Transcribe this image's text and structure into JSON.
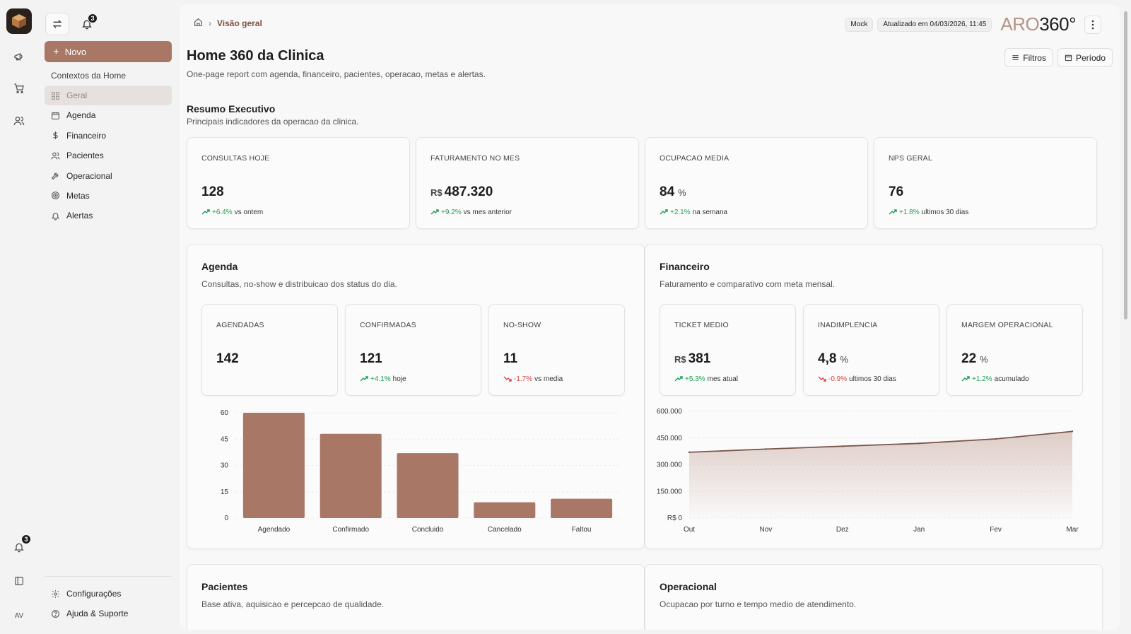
{
  "rail": {
    "notifications_badge": "3",
    "avatar_initials": "AV"
  },
  "sidebar": {
    "notifications_badge": "3",
    "new_label": "Novo",
    "section_label": "Contextos da Home",
    "items": [
      {
        "label": "Geral",
        "icon": "grid-icon"
      },
      {
        "label": "Agenda",
        "icon": "calendar-icon"
      },
      {
        "label": "Financeiro",
        "icon": "dollar-icon"
      },
      {
        "label": "Pacientes",
        "icon": "users-icon"
      },
      {
        "label": "Operacional",
        "icon": "wrench-icon"
      },
      {
        "label": "Metas",
        "icon": "target-icon"
      },
      {
        "label": "Alertas",
        "icon": "bell-icon"
      }
    ],
    "bottom": [
      {
        "label": "Configurações",
        "icon": "gear-icon"
      },
      {
        "label": "Ajuda & Suporte",
        "icon": "help-icon"
      }
    ]
  },
  "header": {
    "breadcrumb_current": "Visão geral",
    "mock_label": "Mock",
    "updated_label": "Atualizado em 04/03/2026, 11:45",
    "brand_aro": "ARO",
    "brand_360": "360°"
  },
  "page": {
    "title": "Home 360 da Clinica",
    "subtitle": "One-page report com agenda, financeiro, pacientes, operacao, metas e alertas.",
    "filters_label": "Filtros",
    "period_label": "Período"
  },
  "summary": {
    "title": "Resumo Executivo",
    "subtitle": "Principais indicadores da operacao da clinica.",
    "kpis": [
      {
        "label": "CONSULTAS HOJE",
        "currency": "",
        "value": "128",
        "unit": "",
        "delta": "+6.4%",
        "context": "vs ontem",
        "direction": "up"
      },
      {
        "label": "FATURAMENTO NO MES",
        "currency": "R$",
        "value": "487.320",
        "unit": "",
        "delta": "+9.2%",
        "context": "vs mes anterior",
        "direction": "up"
      },
      {
        "label": "OCUPACAO MEDIA",
        "currency": "",
        "value": "84",
        "unit": "%",
        "delta": "+2.1%",
        "context": "na semana",
        "direction": "up"
      },
      {
        "label": "NPS GERAL",
        "currency": "",
        "value": "76",
        "unit": "",
        "delta": "+1.8%",
        "context": "ultimos 30 dias",
        "direction": "up"
      }
    ]
  },
  "agenda": {
    "title": "Agenda",
    "subtitle": "Consultas, no-show e distribuicao dos status do dia.",
    "minis": [
      {
        "label": "AGENDADAS",
        "currency": "",
        "value": "142",
        "unit": "",
        "delta": "",
        "context": "",
        "direction": "none"
      },
      {
        "label": "CONFIRMADAS",
        "currency": "",
        "value": "121",
        "unit": "",
        "delta": "+4.1%",
        "context": "hoje",
        "direction": "up"
      },
      {
        "label": "NO-SHOW",
        "currency": "",
        "value": "11",
        "unit": "",
        "delta": "-1.7%",
        "context": "vs media",
        "direction": "down"
      }
    ]
  },
  "financeiro": {
    "title": "Financeiro",
    "subtitle": "Faturamento e comparativo com meta mensal.",
    "minis": [
      {
        "label": "TICKET MEDIO",
        "currency": "R$",
        "value": "381",
        "unit": "",
        "delta": "+5.3%",
        "context": "mes atual",
        "direction": "up"
      },
      {
        "label": "INADIMPLENCIA",
        "currency": "",
        "value": "4,8",
        "unit": "%",
        "delta": "-0.9%",
        "context": "ultimos 30 dias",
        "direction": "down"
      },
      {
        "label": "MARGEM OPERACIONAL",
        "currency": "",
        "value": "22",
        "unit": "%",
        "delta": "+1.2%",
        "context": "acumulado",
        "direction": "up"
      }
    ]
  },
  "pacientes": {
    "title": "Pacientes",
    "subtitle": "Base ativa, aquisicao e percepcao de qualidade."
  },
  "operacional": {
    "title": "Operacional",
    "subtitle": "Ocupacao por turno e tempo medio de atendimento."
  },
  "colors": {
    "accent": "#a87766",
    "up": "#1f9d55",
    "down": "#d64545",
    "line": "#7a5648"
  },
  "chart_data": [
    {
      "type": "bar",
      "categories": [
        "Agendado",
        "Confirmado",
        "Concluido",
        "Cancelado",
        "Faltou"
      ],
      "values": [
        60,
        48,
        37,
        9,
        11
      ],
      "ylim": [
        0,
        60
      ],
      "yticks": [
        "0",
        "15",
        "30",
        "45",
        "60"
      ],
      "tick_values": [
        0,
        15,
        30,
        45,
        60
      ],
      "grid": true,
      "color": "#a87766"
    },
    {
      "type": "area",
      "categories": [
        "Out",
        "Nov",
        "Dez",
        "Jan",
        "Fev",
        "Mar"
      ],
      "values": [
        370000,
        388000,
        404000,
        420000,
        445000,
        487320
      ],
      "ylim": [
        0,
        600000
      ],
      "yticks": [
        "R$ 0",
        "150.000",
        "300.000",
        "450.000",
        "600.000"
      ],
      "tick_values": [
        0,
        150000,
        300000,
        450000,
        600000
      ],
      "grid": true,
      "color": "#7a5648"
    }
  ]
}
